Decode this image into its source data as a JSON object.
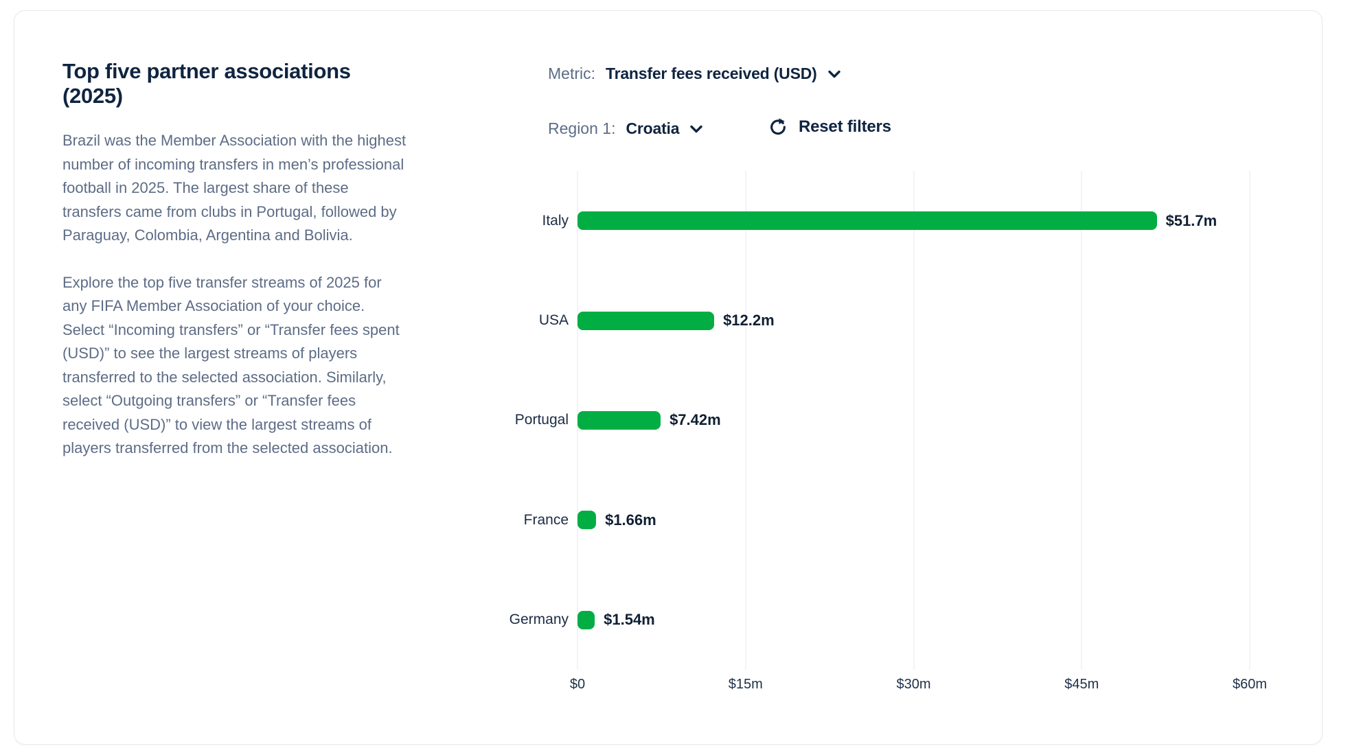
{
  "panel": {
    "title": "Top five partner associations (2025)",
    "paragraph1": "Brazil was the Member Association with the highest number of incoming transfers in men’s professional football in 2025. The largest share of these transfers came from clubs in Portugal, followed by Paraguay, Colombia, Argentina and Bolivia.",
    "paragraph2": "Explore the top five transfer streams of 2025 for any FIFA Member Association of your choice. Select “Incoming transfers” or “Transfer fees spent (USD)” to see the largest streams of players transferred to the selected association. Similarly, select “Outgoing transfers” or “Transfer fees received (USD)” to view the largest streams of players transferred from the selected association."
  },
  "controls": {
    "metric_label": "Metric:",
    "metric_value": "Transfer fees received (USD)",
    "metric_icon": "chevron-down-icon",
    "region_label": "Region 1:",
    "region_value": "Croatia",
    "region_icon": "chevron-down-icon",
    "reset_label": "Reset filters",
    "reset_icon": "refresh-icon"
  },
  "chart_data": {
    "type": "bar",
    "orientation": "horizontal",
    "categories": [
      "Italy",
      "USA",
      "Portugal",
      "France",
      "Germany"
    ],
    "values": [
      51.7,
      12.2,
      7.42,
      1.66,
      1.54
    ],
    "value_labels": [
      "$51.7m",
      "$12.2m",
      "$7.42m",
      "$1.66m",
      "$1.54m"
    ],
    "x_ticks": [
      "$0",
      "$15m",
      "$30m",
      "$45m",
      "$60m"
    ],
    "xlim": [
      0,
      60
    ],
    "unit": "USD millions",
    "grid": true,
    "legend": "none",
    "bar_color": "#02ae44"
  },
  "colors": {
    "accent_green": "#02ae44",
    "navy_text": "#0f2440",
    "muted_text": "#5d6c86",
    "gridline": "#e9eaef",
    "card_border": "#e7e9ee"
  }
}
